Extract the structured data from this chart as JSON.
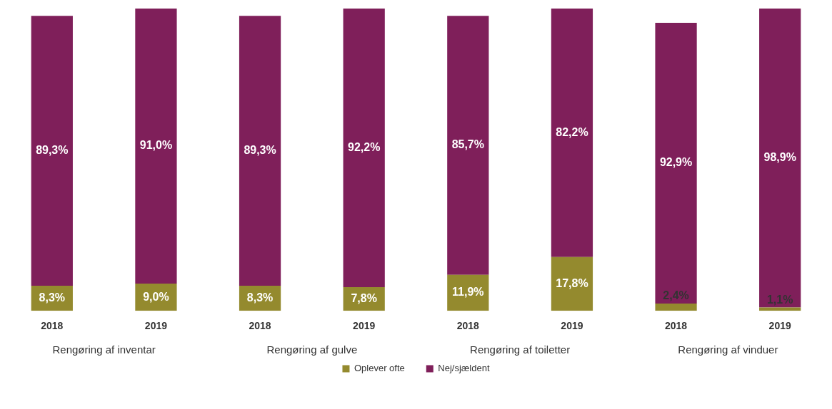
{
  "chart_data": {
    "type": "bar",
    "stacked": true,
    "categories": [
      "2018",
      "2019",
      "2018",
      "2019",
      "2018",
      "2019",
      "2018",
      "2019"
    ],
    "annotations": [
      "Rengøring af inventar",
      "Rengøring af gulve",
      "Rengøring af toiletter",
      "Rengøring af vinduer"
    ],
    "series": [
      {
        "name": "Oplever ofte",
        "color": "#948a2e",
        "values": [
          8.3,
          9.0,
          8.3,
          7.8,
          11.9,
          17.8,
          2.4,
          1.1
        ],
        "value_labels": [
          "8,3%",
          "9,0%",
          "8,3%",
          "7,8%",
          "11,9%",
          "17,8%",
          "2,4%",
          "1,1%"
        ]
      },
      {
        "name": "Nej/sjældent",
        "color": "#7f1f5a",
        "values": [
          89.3,
          91.0,
          89.3,
          92.2,
          85.7,
          82.2,
          92.9,
          98.9
        ],
        "value_labels": [
          "89,3%",
          "91,0%",
          "89,3%",
          "92,2%",
          "85,7%",
          "82,2%",
          "92,9%",
          "98,9%"
        ]
      }
    ],
    "tick_labels": "x",
    "legend": "bottom",
    "grid": false
  }
}
